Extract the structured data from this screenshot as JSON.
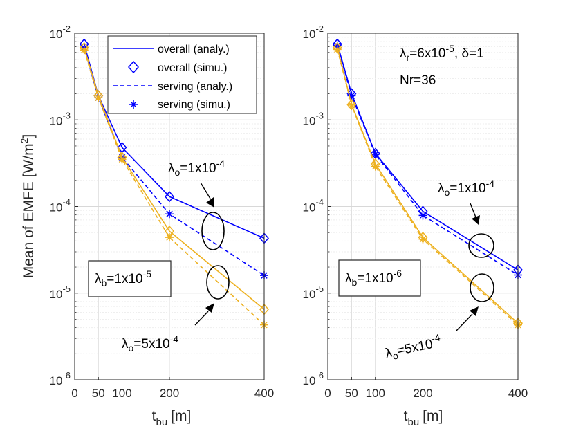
{
  "chart_data": [
    {
      "type": "line",
      "yscale": "log",
      "xlabel": "t",
      "xlabel_sub": "bu",
      "xlabel_unit": "[m]",
      "ylabel": "Mean of EMFE [W/m",
      "ylabel_sup": "2",
      "ylabel_end": "]",
      "xlim": [
        0,
        400
      ],
      "ylim": [
        1e-06,
        0.01
      ],
      "xticks": [
        0,
        50,
        100,
        200,
        400
      ],
      "ytick_base": "10",
      "ytick_exps": [
        "-6",
        "-5",
        "-4",
        "-3",
        "-2"
      ],
      "grid": true,
      "x": [
        20,
        50,
        100,
        200,
        400
      ],
      "series": [
        {
          "name": "overall (analy.)",
          "group": "lo1e-4",
          "color": "#0000ff",
          "style": "solid",
          "marker": "none",
          "values": [
            0.0075,
            0.0019,
            0.00048,
            0.00013,
            4.3e-05
          ]
        },
        {
          "name": "overall (simu.)",
          "group": "lo1e-4",
          "color": "#0000ff",
          "style": "none",
          "marker": "diamond",
          "values": [
            0.0075,
            0.0019,
            0.00048,
            0.00013,
            4.3e-05
          ]
        },
        {
          "name": "serving (analy.)",
          "group": "lo1e-4",
          "color": "#0000ff",
          "style": "dashed",
          "marker": "none",
          "values": [
            0.0068,
            0.0018,
            0.00037,
            8.2e-05,
            1.6e-05
          ]
        },
        {
          "name": "serving (simu.)",
          "group": "lo1e-4",
          "color": "#0000ff",
          "style": "none",
          "marker": "star",
          "values": [
            0.0068,
            0.0018,
            0.00037,
            8.2e-05,
            1.6e-05
          ]
        },
        {
          "name": "overall (analy.)",
          "group": "lo5e-4",
          "color": "#edb120",
          "style": "solid",
          "marker": "none",
          "values": [
            0.0068,
            0.0019,
            0.00037,
            5.2e-05,
            6.5e-06
          ]
        },
        {
          "name": "overall (simu.)",
          "group": "lo5e-4",
          "color": "#edb120",
          "style": "none",
          "marker": "diamond",
          "values": [
            0.0068,
            0.0019,
            0.00037,
            5.2e-05,
            6.5e-06
          ]
        },
        {
          "name": "serving (analy.)",
          "group": "lo5e-4",
          "color": "#edb120",
          "style": "dashed",
          "marker": "none",
          "values": [
            0.0064,
            0.0018,
            0.00035,
            4.4e-05,
            4.3e-06
          ]
        },
        {
          "name": "serving (simu.)",
          "group": "lo5e-4",
          "color": "#edb120",
          "style": "none",
          "marker": "star",
          "values": [
            0.0064,
            0.0018,
            0.00035,
            4.4e-05,
            4.3e-06
          ]
        }
      ],
      "legend": {
        "placement": "top-right",
        "entries": [
          "overall (analy.)",
          "overall (simu.)",
          "serving (analy.)",
          "serving (simu.)"
        ]
      },
      "annotations": {
        "lambda_b": {
          "pre": "λ",
          "sub": "b",
          "mid": "=1x10",
          "sup": "-5"
        },
        "lambda_o_high": {
          "pre": "λ",
          "sub": "o",
          "mid": "=1x10",
          "sup": "-4"
        },
        "lambda_o_low": {
          "pre": "λ",
          "sub": "o",
          "mid": "=5x10",
          "sup": "-4"
        }
      }
    },
    {
      "type": "line",
      "yscale": "log",
      "xlabel": "t",
      "xlabel_sub": "bu",
      "xlabel_unit": "[m]",
      "xlim": [
        0,
        400
      ],
      "ylim": [
        1e-06,
        0.01
      ],
      "xticks": [
        0,
        50,
        100,
        200,
        400
      ],
      "ytick_base": "10",
      "ytick_exps": [
        "-6",
        "-5",
        "-4",
        "-3",
        "-2"
      ],
      "grid": true,
      "x": [
        20,
        50,
        100,
        200,
        400
      ],
      "series": [
        {
          "name": "overall (analy.)",
          "group": "lo1e-4",
          "color": "#0000ff",
          "style": "solid",
          "marker": "none",
          "values": [
            0.0075,
            0.002,
            0.00041,
            8.8e-05,
            1.85e-05
          ]
        },
        {
          "name": "overall (simu.)",
          "group": "lo1e-4",
          "color": "#0000ff",
          "style": "none",
          "marker": "diamond",
          "values": [
            0.0075,
            0.002,
            0.00041,
            8.8e-05,
            1.85e-05
          ]
        },
        {
          "name": "serving (analy.)",
          "group": "lo1e-4",
          "color": "#0000ff",
          "style": "dashed",
          "marker": "none",
          "values": [
            0.0072,
            0.0019,
            0.0004,
            7.9e-05,
            1.62e-05
          ]
        },
        {
          "name": "serving (simu.)",
          "group": "lo1e-4",
          "color": "#0000ff",
          "style": "none",
          "marker": "star",
          "values": [
            0.0072,
            0.0019,
            0.0004,
            7.9e-05,
            1.62e-05
          ]
        },
        {
          "name": "overall (analy.)",
          "group": "lo5e-4",
          "color": "#edb120",
          "style": "solid",
          "marker": "none",
          "values": [
            0.0068,
            0.0015,
            0.00031,
            4.4e-05,
            4.5e-06
          ]
        },
        {
          "name": "overall (simu.)",
          "group": "lo5e-4",
          "color": "#edb120",
          "style": "none",
          "marker": "diamond",
          "values": [
            0.0068,
            0.0015,
            0.00031,
            4.4e-05,
            4.5e-06
          ]
        },
        {
          "name": "serving (analy.)",
          "group": "lo5e-4",
          "color": "#edb120",
          "style": "dashed",
          "marker": "none",
          "values": [
            0.0065,
            0.00148,
            0.00029,
            4.2e-05,
            4.3e-06
          ]
        },
        {
          "name": "serving (simu.)",
          "group": "lo5e-4",
          "color": "#edb120",
          "style": "none",
          "marker": "star",
          "values": [
            0.0065,
            0.00148,
            0.00029,
            4.2e-05,
            4.3e-06
          ]
        }
      ],
      "annotations": {
        "params": {
          "pre": "λ",
          "sub": "r",
          "mid": "=6x10",
          "sup": "-5",
          "tail": ", δ=1"
        },
        "nr": "Nr=36",
        "lambda_b": {
          "pre": "λ",
          "sub": "b",
          "mid": "=1x10",
          "sup": "-6"
        },
        "lambda_o_high": {
          "pre": "λ",
          "sub": "o",
          "mid": "=1x10",
          "sup": "-4"
        },
        "lambda_o_low": {
          "pre": "λ",
          "sub": "o",
          "mid": "=5x10",
          "sup": "-4"
        }
      }
    }
  ]
}
